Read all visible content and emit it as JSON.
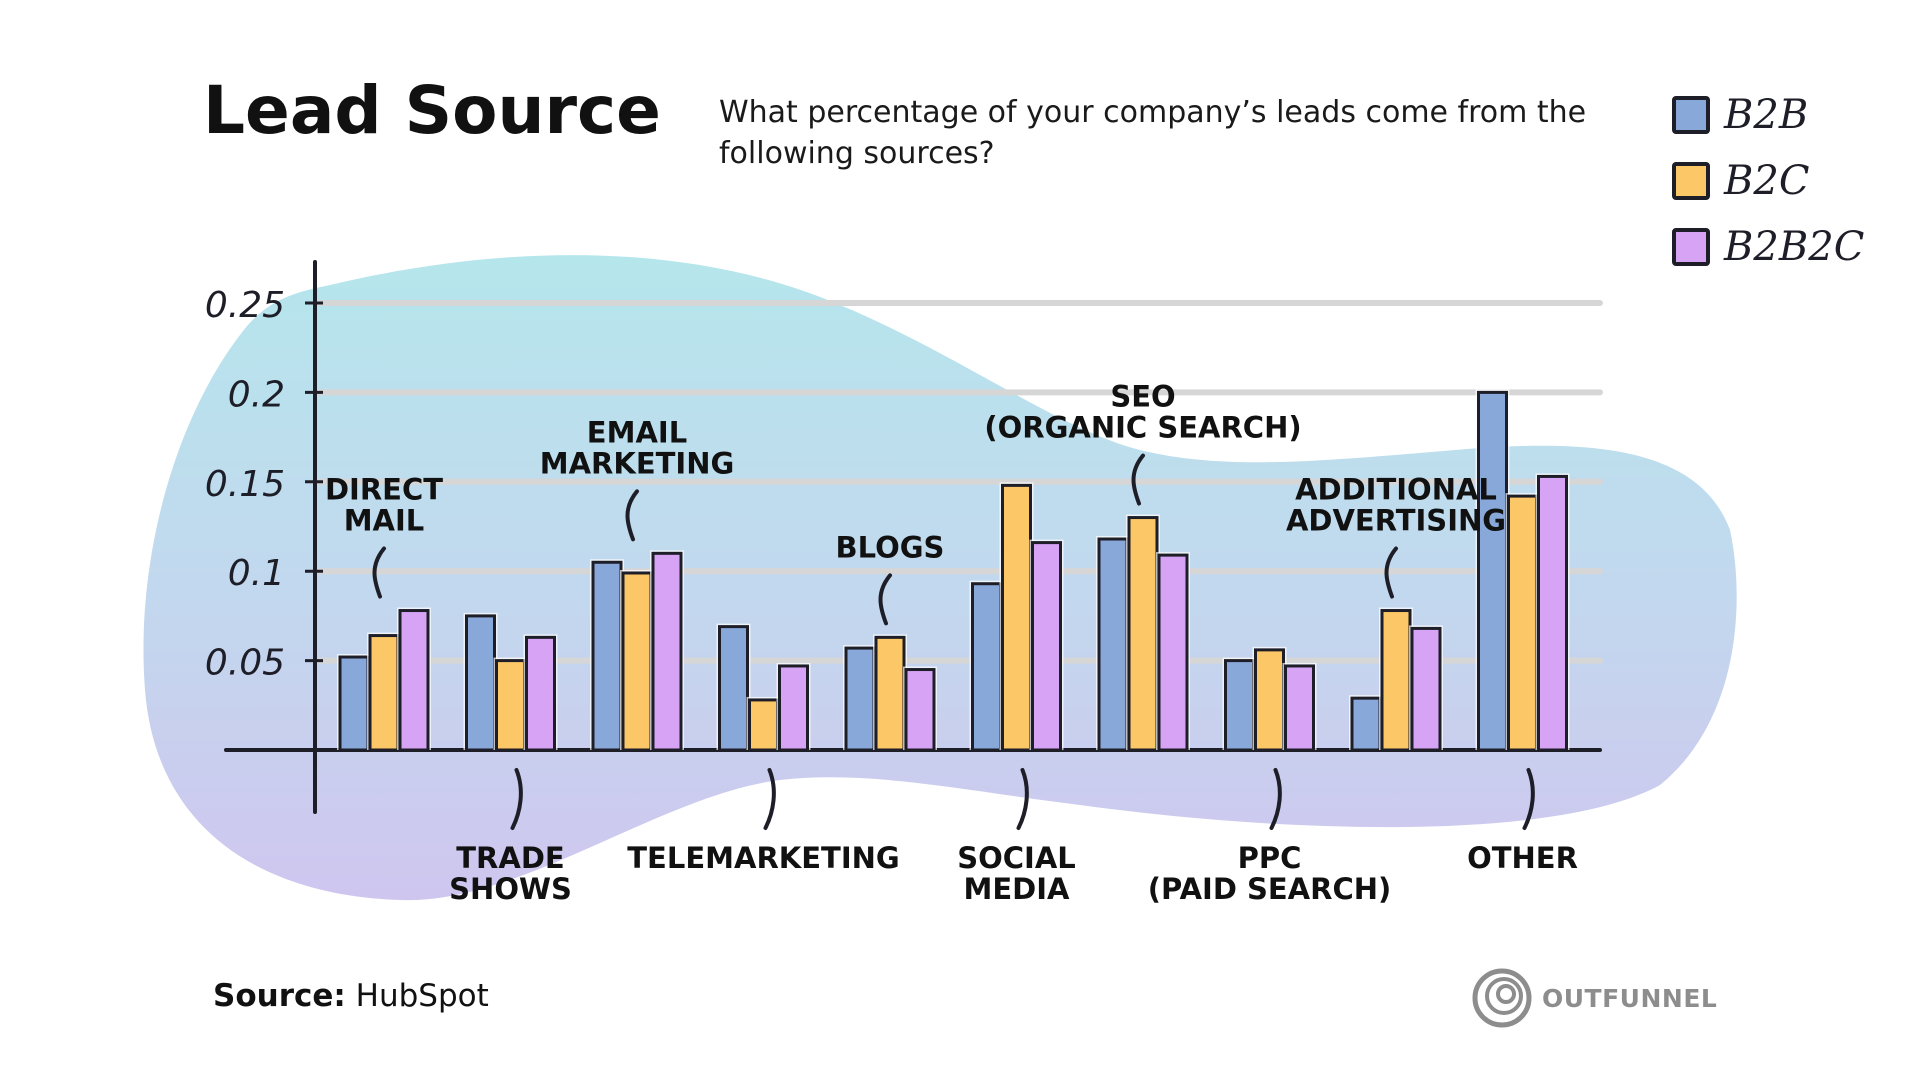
{
  "title": "Lead Source",
  "subtitle": "What percentage of your company’s leads come from the following sources?",
  "source": {
    "label": "Source:",
    "value": "HubSpot"
  },
  "brand": "OUTFUNNEL",
  "colors": {
    "b2b": "#88a8da",
    "b2c": "#fcc766",
    "b2b2c": "#d6a3f5",
    "outline": "#1e1e28"
  },
  "chart_data": {
    "type": "bar",
    "title": "Lead Source",
    "ylim": [
      0,
      0.25
    ],
    "yticks": [
      "0.05",
      "0.1",
      "0.15",
      "0.2",
      "0.25"
    ],
    "grid": true,
    "legend_position": "top-right",
    "categories": [
      {
        "lines": [
          "DIRECT",
          "MAIL"
        ],
        "label_side": "top"
      },
      {
        "lines": [
          "TRADE",
          "SHOWS"
        ],
        "label_side": "bottom"
      },
      {
        "lines": [
          "EMAIL",
          "MARKETING"
        ],
        "label_side": "top"
      },
      {
        "lines": [
          "TELEMARKETING"
        ],
        "label_side": "bottom"
      },
      {
        "lines": [
          "BLOGS"
        ],
        "label_side": "top"
      },
      {
        "lines": [
          "SOCIAL",
          "MEDIA"
        ],
        "label_side": "bottom"
      },
      {
        "lines": [
          "SEO",
          "(ORGANIC SEARCH)"
        ],
        "label_side": "top"
      },
      {
        "lines": [
          "PPC",
          "(PAID SEARCH)"
        ],
        "label_side": "bottom"
      },
      {
        "lines": [
          "ADDITIONAL",
          "ADVERTISING"
        ],
        "label_side": "top"
      },
      {
        "lines": [
          "OTHER"
        ],
        "label_side": "bottom"
      }
    ],
    "series": [
      {
        "name": "B2B",
        "color": "#88a8da",
        "values": [
          0.052,
          0.075,
          0.105,
          0.069,
          0.057,
          0.093,
          0.118,
          0.05,
          0.029,
          0.2
        ]
      },
      {
        "name": "B2C",
        "color": "#fcc766",
        "values": [
          0.064,
          0.05,
          0.099,
          0.028,
          0.063,
          0.148,
          0.13,
          0.056,
          0.078,
          0.142
        ]
      },
      {
        "name": "B2B2C",
        "color": "#d6a3f5",
        "values": [
          0.078,
          0.063,
          0.11,
          0.047,
          0.045,
          0.116,
          0.109,
          0.047,
          0.068,
          0.153
        ]
      }
    ]
  }
}
